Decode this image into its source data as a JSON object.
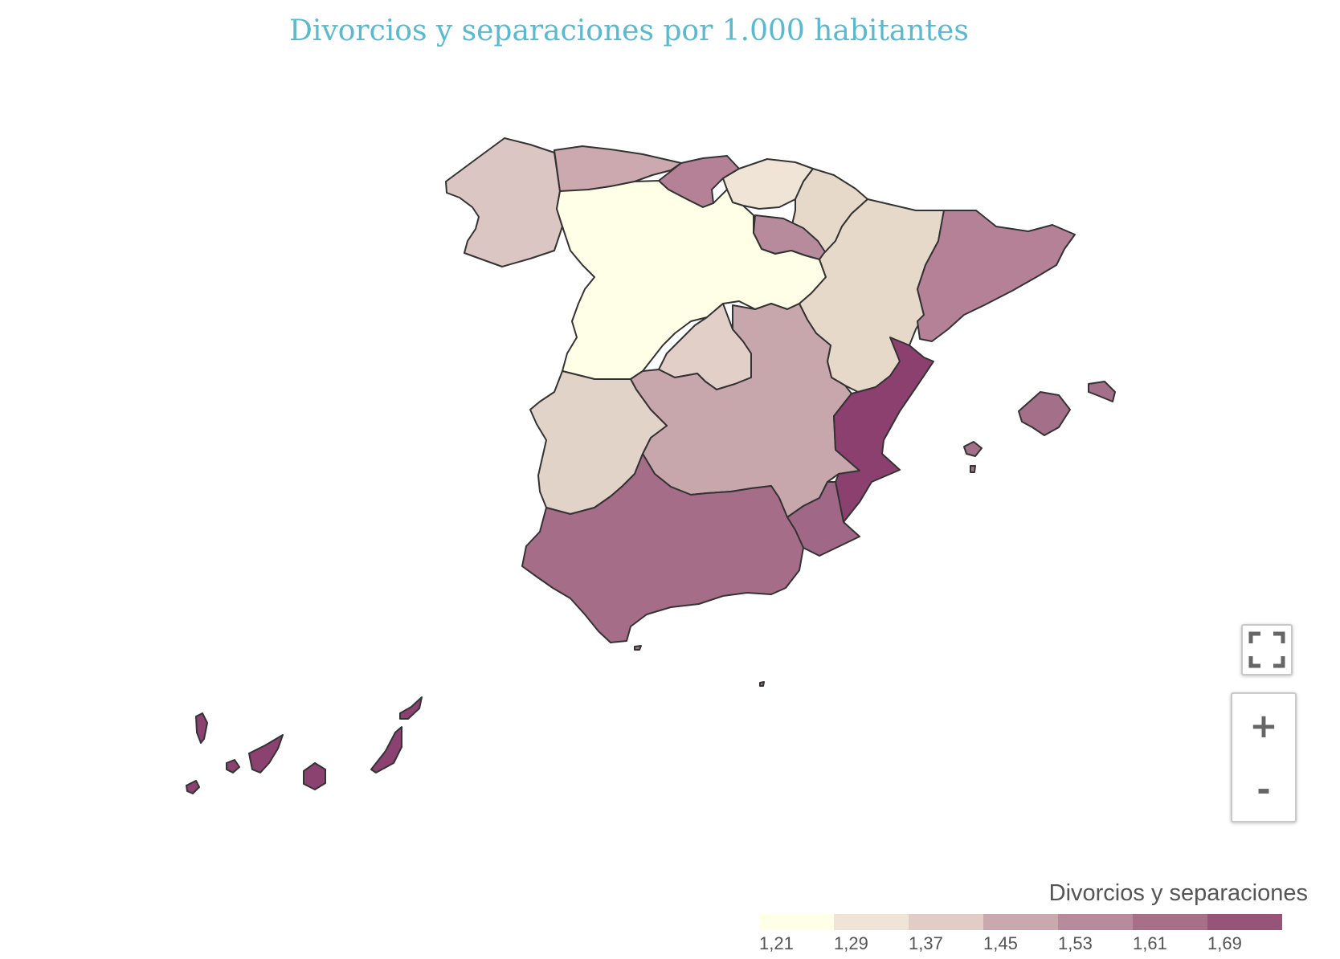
{
  "title": "Divorcios y separaciones por 1.000 habitantes",
  "legend": {
    "title": "Divorcios y separaciones",
    "ticks": [
      "1,21",
      "1,29",
      "1,37",
      "1,45",
      "1,53",
      "1,61",
      "1,69"
    ],
    "colors": [
      "#ffffe8",
      "#efe4d6",
      "#e1cdc6",
      "#c9a8ae",
      "#b88b9c",
      "#a77088",
      "#965478"
    ]
  },
  "controls": {
    "zoom_in": "+",
    "zoom_out": "-"
  },
  "regions": {
    "galicia": "#dcc6c3",
    "asturias": "#cba9ae",
    "cantabria": "#b58197",
    "pais_vasco": "#efe4d6",
    "navarra": "#e6d9ca",
    "la_rioja": "#b78a9c",
    "castilla_y_leon": "#ffffe8",
    "aragon": "#e6d9ca",
    "cataluna": "#b58197",
    "madrid": "#e2cfc7",
    "castilla_la_mancha": "#c8a7ac",
    "extremadura": "#e2d3c9",
    "comunidad_valenciana": "#8c406f",
    "murcia": "#a16786",
    "andalucia": "#a66d89",
    "baleares": "#a36f89",
    "canarias": "#8c4271"
  }
}
